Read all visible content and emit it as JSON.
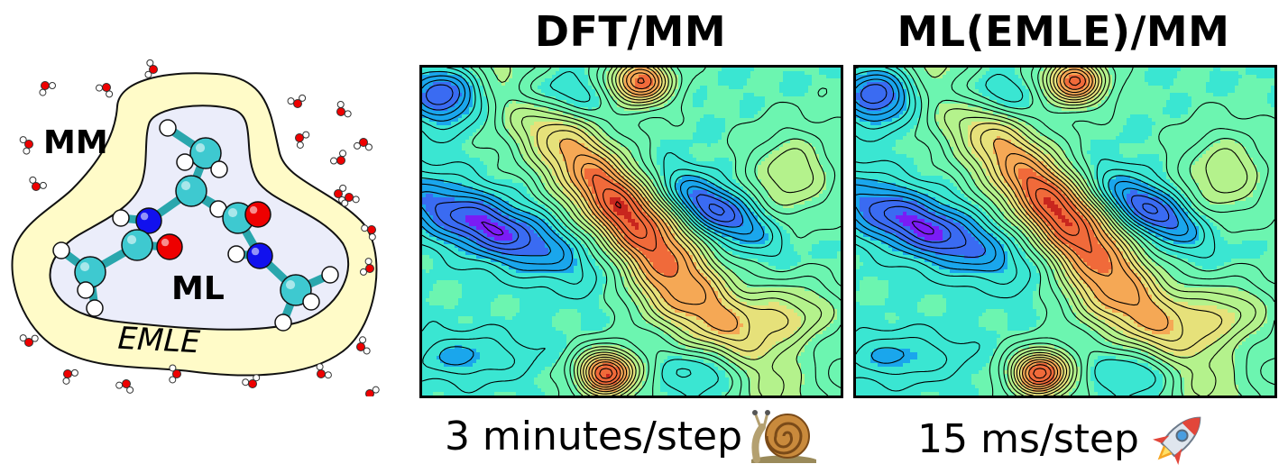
{
  "schematic": {
    "outer_label": "MM",
    "inner_label": "ML",
    "shell_label": "EMLE",
    "colors": {
      "shell_fill": "#fffbc8",
      "core_fill": "#ebedfa",
      "carbon": "#3ec9d0",
      "nitrogen": "#1111ee",
      "oxygen": "#ee0000",
      "hydrogen": "#ffffff"
    }
  },
  "panels": [
    {
      "title": "DFT/MM",
      "caption": "3 minutes/step",
      "icon": "snail-icon"
    },
    {
      "title": "ML(EMLE)/MM",
      "caption": "15 ms/step",
      "icon": "rocket-icon"
    }
  ],
  "colormap": [
    "#7a1cf5",
    "#3a6bf2",
    "#1aa6ec",
    "#3ae6d2",
    "#6cf5b0",
    "#b4f28c",
    "#e6e17a",
    "#f5a855",
    "#f06a3a",
    "#c8261e"
  ]
}
